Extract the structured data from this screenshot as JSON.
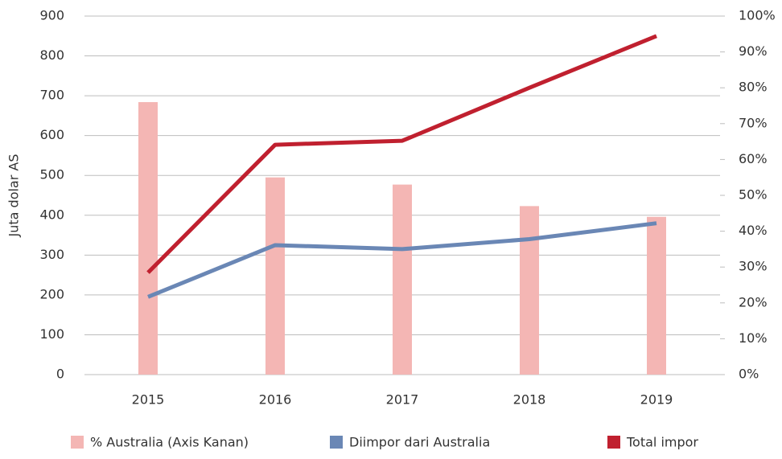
{
  "chart_data": {
    "type": "combo",
    "y_label": "Juta dolar AS",
    "categories": [
      "2015",
      "2016",
      "2017",
      "2018",
      "2019"
    ],
    "series": [
      {
        "name": "% Australia (Axis Kanan)",
        "type": "bar",
        "axis": "y2",
        "color": "#f4b6b4",
        "values": [
          76,
          55,
          53,
          47,
          44
        ]
      },
      {
        "name": "Diimpor dari Australia",
        "type": "line",
        "color": "#6a87b5",
        "values": [
          195,
          325,
          315,
          340,
          380
        ]
      },
      {
        "name": "Total impor",
        "type": "line",
        "color": "#c0202f",
        "values": [
          256,
          577,
          587,
          720,
          850
        ]
      }
    ],
    "ylim": [
      0,
      900
    ],
    "yticks": [
      0,
      100,
      200,
      300,
      400,
      500,
      600,
      700,
      800,
      900
    ],
    "y2lim": [
      0,
      100
    ],
    "y2ticks": [
      {
        "value": 0,
        "label": "0%"
      },
      {
        "value": 10,
        "label": "10%"
      },
      {
        "value": 20,
        "label": "20%"
      },
      {
        "value": 30,
        "label": "30%"
      },
      {
        "value": 40,
        "label": "40%"
      },
      {
        "value": 50,
        "label": "50%"
      },
      {
        "value": 60,
        "label": "60%"
      },
      {
        "value": 70,
        "label": "70%"
      },
      {
        "value": 80,
        "label": "80%"
      },
      {
        "value": 90,
        "label": "90%"
      },
      {
        "value": 100,
        "label": "100%"
      }
    ],
    "grid": true,
    "legend": "bottom"
  }
}
